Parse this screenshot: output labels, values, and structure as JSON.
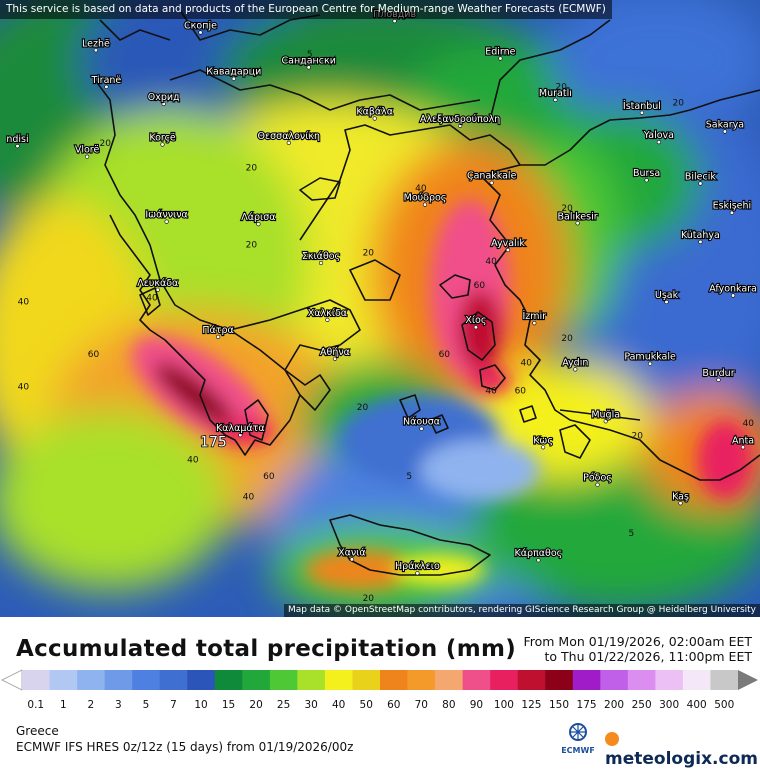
{
  "map": {
    "credit_top": "This service is based on data and products of the European Centre for Medium-range Weather Forecasts (ECMWF)",
    "credit_bottom": "Map data © OpenStreetMap contributors, rendering GIScience Research Group @ Heidelberg University",
    "places": [
      {
        "name": "Lezhë",
        "lon": 19.64,
        "lat": 41.78
      },
      {
        "name": "Скопје",
        "lon": 21.43,
        "lat": 42.0
      },
      {
        "name": "Пловдив",
        "lon": 24.75,
        "lat": 42.14
      },
      {
        "name": "Edirne",
        "lon": 26.56,
        "lat": 41.68
      },
      {
        "name": "Tiranë",
        "lon": 19.82,
        "lat": 41.33
      },
      {
        "name": "Кавадарци",
        "lon": 22.0,
        "lat": 41.43
      },
      {
        "name": "Сандански",
        "lon": 23.28,
        "lat": 41.57
      },
      {
        "name": "Охрид",
        "lon": 20.8,
        "lat": 41.12
      },
      {
        "name": "Muratlı",
        "lon": 27.5,
        "lat": 41.17
      },
      {
        "name": "İstanbul",
        "lon": 28.98,
        "lat": 41.01
      },
      {
        "name": "Καβάλα",
        "lon": 24.41,
        "lat": 40.94
      },
      {
        "name": "Αλεξανδρούπολη",
        "lon": 25.87,
        "lat": 40.85
      },
      {
        "name": "Korçë",
        "lon": 20.78,
        "lat": 40.62
      },
      {
        "name": "Θεσσαλονίκη",
        "lon": 22.94,
        "lat": 40.64
      },
      {
        "name": "Yalova",
        "lon": 29.27,
        "lat": 40.65
      },
      {
        "name": "Sakarya",
        "lon": 30.4,
        "lat": 40.78
      },
      {
        "name": "Vlorë",
        "lon": 19.49,
        "lat": 40.47
      },
      {
        "name": "ndisi",
        "lon": 18.3,
        "lat": 40.6
      },
      {
        "name": "Çanakkale",
        "lon": 26.41,
        "lat": 40.15
      },
      {
        "name": "Bursa",
        "lon": 29.06,
        "lat": 40.18
      },
      {
        "name": "Bilecik",
        "lon": 29.98,
        "lat": 40.14
      },
      {
        "name": "Σκιάθος",
        "lon": 23.49,
        "lat": 39.16
      },
      {
        "name": "Μούδρος",
        "lon": 25.27,
        "lat": 39.88
      },
      {
        "name": "Balıkesir",
        "lon": 27.88,
        "lat": 39.65
      },
      {
        "name": "Eskişehi",
        "lon": 30.52,
        "lat": 39.78
      },
      {
        "name": "Ιωάννινα",
        "lon": 20.85,
        "lat": 39.67
      },
      {
        "name": "Λάρισα",
        "lon": 22.42,
        "lat": 39.64
      },
      {
        "name": "Ayvalık",
        "lon": 26.69,
        "lat": 39.32
      },
      {
        "name": "Kütahya",
        "lon": 29.98,
        "lat": 39.42
      },
      {
        "name": "Uşak",
        "lon": 29.4,
        "lat": 38.68
      },
      {
        "name": "Afyonkara",
        "lon": 30.54,
        "lat": 38.76
      },
      {
        "name": "Χαλκίδα",
        "lon": 23.6,
        "lat": 38.46
      },
      {
        "name": "Χίος",
        "lon": 26.14,
        "lat": 38.37
      },
      {
        "name": "İzmir",
        "lon": 27.14,
        "lat": 38.42
      },
      {
        "name": "Λευκάδα",
        "lon": 20.7,
        "lat": 38.83
      },
      {
        "name": "Πάτρα",
        "lon": 21.73,
        "lat": 38.25
      },
      {
        "name": "Αθήνα",
        "lon": 23.73,
        "lat": 37.98
      },
      {
        "name": "Pamukkale",
        "lon": 29.12,
        "lat": 37.92
      },
      {
        "name": "Aydın",
        "lon": 27.84,
        "lat": 37.85
      },
      {
        "name": "Burdur",
        "lon": 30.29,
        "lat": 37.72
      },
      {
        "name": "Καλαμάτα",
        "lon": 22.11,
        "lat": 37.04
      },
      {
        "name": "Νάουσα",
        "lon": 25.21,
        "lat": 37.12
      },
      {
        "name": "Muğla",
        "lon": 28.36,
        "lat": 37.21
      },
      {
        "name": "Κως",
        "lon": 27.29,
        "lat": 36.89
      },
      {
        "name": "Ρόδος",
        "lon": 28.22,
        "lat": 36.43
      },
      {
        "name": "Anta",
        "lon": 30.71,
        "lat": 36.89
      },
      {
        "name": "Kaş",
        "lon": 29.64,
        "lat": 36.2
      },
      {
        "name": "Χανιά",
        "lon": 24.02,
        "lat": 35.51
      },
      {
        "name": "Ηράκλειο",
        "lon": 25.14,
        "lat": 35.34
      },
      {
        "name": "Κάρπαθος",
        "lon": 27.21,
        "lat": 35.5
      }
    ],
    "contour_labels": [
      {
        "text": "5",
        "lon": 23.3,
        "lat": 41.7
      },
      {
        "text": "20",
        "lon": 27.6,
        "lat": 41.3
      },
      {
        "text": "20",
        "lon": 29.6,
        "lat": 41.1
      },
      {
        "text": "20",
        "lon": 19.8,
        "lat": 40.6
      },
      {
        "text": "20",
        "lon": 22.3,
        "lat": 40.3
      },
      {
        "text": "40",
        "lon": 25.2,
        "lat": 40.05
      },
      {
        "text": "20",
        "lon": 27.7,
        "lat": 39.8
      },
      {
        "text": "20",
        "lon": 22.3,
        "lat": 39.35
      },
      {
        "text": "20",
        "lon": 24.3,
        "lat": 39.25
      },
      {
        "text": "40",
        "lon": 26.4,
        "lat": 39.15
      },
      {
        "text": "60",
        "lon": 26.2,
        "lat": 38.85
      },
      {
        "text": "40",
        "lon": 20.6,
        "lat": 38.7
      },
      {
        "text": "40",
        "lon": 18.4,
        "lat": 38.65
      },
      {
        "text": "20",
        "lon": 27.7,
        "lat": 38.2
      },
      {
        "text": "60",
        "lon": 19.6,
        "lat": 38.0
      },
      {
        "text": "40",
        "lon": 27.0,
        "lat": 37.9
      },
      {
        "text": "60",
        "lon": 25.6,
        "lat": 38.0
      },
      {
        "text": "40",
        "lon": 18.4,
        "lat": 37.6
      },
      {
        "text": "40",
        "lon": 26.4,
        "lat": 37.55
      },
      {
        "text": "60",
        "lon": 26.9,
        "lat": 37.55
      },
      {
        "text": "20",
        "lon": 24.2,
        "lat": 37.35
      },
      {
        "text": "20",
        "lon": 28.9,
        "lat": 37.0
      },
      {
        "text": "40",
        "lon": 30.8,
        "lat": 37.15
      },
      {
        "text": "175",
        "lon": 21.65,
        "lat": 36.9
      },
      {
        "text": "40",
        "lon": 21.3,
        "lat": 36.7
      },
      {
        "text": "60",
        "lon": 22.6,
        "lat": 36.5
      },
      {
        "text": "5",
        "lon": 25.0,
        "lat": 36.5
      },
      {
        "text": "40",
        "lon": 22.25,
        "lat": 36.25
      },
      {
        "text": "5",
        "lon": 28.8,
        "lat": 35.8
      },
      {
        "text": "20",
        "lon": 24.3,
        "lat": 35.0
      }
    ]
  },
  "legend": {
    "title": "Accumulated total precipitation (mm)",
    "valid_from": "From Mon 01/19/2026, 02:00am EET",
    "valid_to": "to Thu 01/22/2026, 11:00pm EET",
    "steps": [
      {
        "label": "0.1",
        "color": "#d9d4ee"
      },
      {
        "label": "1",
        "color": "#b1c8f2"
      },
      {
        "label": "2",
        "color": "#8fb3ef"
      },
      {
        "label": "3",
        "color": "#6f9ae8"
      },
      {
        "label": "5",
        "color": "#4d80e0"
      },
      {
        "label": "7",
        "color": "#3f6fd0"
      },
      {
        "label": "10",
        "color": "#2b55b8"
      },
      {
        "label": "15",
        "color": "#0f8a3a"
      },
      {
        "label": "20",
        "color": "#22a83a"
      },
      {
        "label": "25",
        "color": "#4ec835"
      },
      {
        "label": "30",
        "color": "#a8e02a"
      },
      {
        "label": "40",
        "color": "#f4f01e"
      },
      {
        "label": "50",
        "color": "#e8d21a"
      },
      {
        "label": "60",
        "color": "#f0841c"
      },
      {
        "label": "70",
        "color": "#f39a2a"
      },
      {
        "label": "80",
        "color": "#f4a86f"
      },
      {
        "label": "90",
        "color": "#f0508a"
      },
      {
        "label": "100",
        "color": "#e82060"
      },
      {
        "label": "125",
        "color": "#c01030"
      },
      {
        "label": "150",
        "color": "#8c0018"
      },
      {
        "label": "175",
        "color": "#a01cc8"
      },
      {
        "label": "200",
        "color": "#c060e8"
      },
      {
        "label": "250",
        "color": "#dc8ef0"
      },
      {
        "label": "300",
        "color": "#ecc0f4"
      },
      {
        "label": "400",
        "color": "#f4e8f8"
      },
      {
        "label": "500",
        "color": "#c8c8c8"
      }
    ]
  },
  "footer": {
    "region": "Greece",
    "model": "ECMWF IFS HRES 0z/12z (15 days) from  01/19/2026/00z",
    "ecmwf": "ECMWF",
    "brand": "meteologix.com"
  }
}
